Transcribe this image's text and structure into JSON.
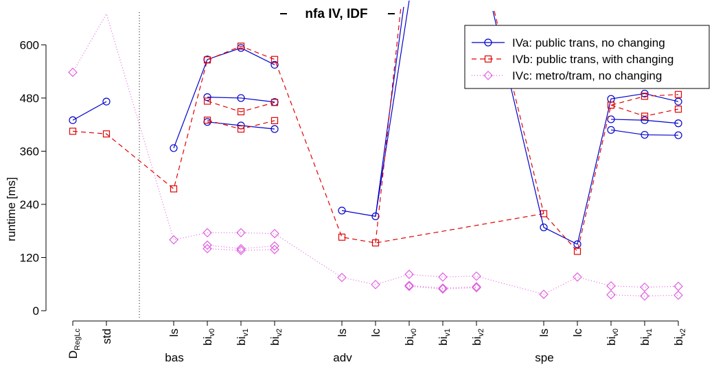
{
  "chart_data": {
    "type": "line",
    "title": "nfa IV, IDF",
    "ylabel": "runtime [ms]",
    "ylim": [
      0,
      670
    ],
    "yticks": [
      0,
      120,
      240,
      360,
      480,
      600
    ],
    "categories": [
      {
        "id": "dreg",
        "base": "D",
        "sub": "RegLc"
      },
      {
        "id": "std",
        "base": "std",
        "sub": ""
      },
      {
        "id": "bas_ls",
        "base": "ls",
        "sub": ""
      },
      {
        "id": "bas_bi0",
        "base": "bi",
        "sub": "v0"
      },
      {
        "id": "bas_bi1",
        "base": "bi",
        "sub": "v1"
      },
      {
        "id": "bas_bi2",
        "base": "bi",
        "sub": "v2"
      },
      {
        "id": "adv_ls",
        "base": "ls",
        "sub": ""
      },
      {
        "id": "adv_lc",
        "base": "lc",
        "sub": ""
      },
      {
        "id": "adv_bi0",
        "base": "bi",
        "sub": "v0"
      },
      {
        "id": "adv_bi1",
        "base": "bi",
        "sub": "v1"
      },
      {
        "id": "adv_bi2",
        "base": "bi",
        "sub": "v2"
      },
      {
        "id": "spe_ls",
        "base": "ls",
        "sub": ""
      },
      {
        "id": "spe_lc",
        "base": "lc",
        "sub": ""
      },
      {
        "id": "spe_bi0",
        "base": "bi",
        "sub": "v0"
      },
      {
        "id": "spe_bi1",
        "base": "bi",
        "sub": "v1"
      },
      {
        "id": "spe_bi2",
        "base": "bi",
        "sub": "v2"
      }
    ],
    "groups": [
      {
        "label": "bas",
        "center": "bas_ls"
      },
      {
        "label": "adv",
        "center": "adv_ls"
      },
      {
        "label": "spe",
        "center": "spe_ls"
      }
    ],
    "legend_position": "top-right",
    "series": [
      {
        "name": "IVa: public trans, no changing",
        "color": "#0000cc",
        "marker": "circle",
        "dash": "solid",
        "main": [
          430,
          472,
          null,
          367,
          567,
          593,
          555,
          null,
          226,
          213,
          700,
          null,
          null,
          null,
          188,
          150,
          478,
          490,
          472
        ],
        "main_x": [
          "dreg",
          "std",
          null,
          "bas_ls",
          "bas_bi0",
          "bas_bi1",
          "bas_bi2",
          null,
          "adv_ls",
          "adv_lc",
          "adv_bi0",
          null,
          null,
          null,
          "spe_ls",
          "spe_lc",
          "spe_bi0",
          "spe_bi1",
          "spe_bi2"
        ],
        "extra_lines": [
          {
            "x": [
              "bas_bi0",
              "bas_bi1",
              "bas_bi2"
            ],
            "values": [
              482,
              480,
              471
            ]
          },
          {
            "x": [
              "bas_bi0",
              "bas_bi1",
              "bas_bi2"
            ],
            "values": [
              426,
              418,
              410
            ]
          },
          {
            "x": [
              "spe_bi0",
              "spe_bi1",
              "spe_bi2"
            ],
            "values": [
              432,
              430,
              423
            ]
          },
          {
            "x": [
              "spe_bi0",
              "spe_bi1",
              "spe_bi2"
            ],
            "values": [
              408,
              397,
              396
            ]
          }
        ],
        "offscale_in": {
          "from": "adv_lc",
          "note": "values above axis between adv_lc and spe_ls"
        }
      },
      {
        "name": "IVb: public trans, with changing",
        "color": "#e00000",
        "marker": "square",
        "dash": "dashed",
        "main_x": [
          "dreg",
          "std",
          "bas_ls",
          "bas_bi0",
          "bas_bi1",
          "bas_bi2",
          "adv_ls",
          "adv_lc",
          "spe_ls",
          "spe_lc",
          "spe_bi0",
          "spe_bi1",
          "spe_bi2"
        ],
        "main": [
          405,
          399,
          275,
          566,
          597,
          567,
          166,
          153,
          219,
          134,
          464,
          484,
          488
        ],
        "extra_lines": [
          {
            "x": [
              "bas_bi0",
              "bas_bi1",
              "bas_bi2"
            ],
            "values": [
              473,
              449,
              470
            ]
          },
          {
            "x": [
              "bas_bi0",
              "bas_bi1",
              "bas_bi2"
            ],
            "values": [
              430,
              410,
              429
            ]
          },
          {
            "x": [
              "spe_bi0",
              "spe_bi1",
              "spe_bi2"
            ],
            "values": [
              464,
              439,
              455
            ]
          }
        ]
      },
      {
        "name": "IVc: metro/tram, no changing",
        "color": "#e060e0",
        "marker": "diamond",
        "dash": "dotted",
        "main_x": [
          "dreg",
          "std",
          "bas_ls",
          "bas_bi0",
          "bas_bi1",
          "bas_bi2",
          "adv_ls",
          "adv_lc",
          "adv_bi0",
          "adv_bi1",
          "adv_bi2",
          "spe_ls",
          "spe_lc",
          "spe_bi0",
          "spe_bi1",
          "spe_bi2"
        ],
        "main": [
          538,
          670,
          160,
          176,
          176,
          174,
          75,
          59,
          82,
          76,
          78,
          37,
          76,
          56,
          53,
          55
        ],
        "extra_lines": [
          {
            "x": [
              "bas_bi0",
              "bas_bi1",
              "bas_bi2"
            ],
            "values": [
              148,
              140,
              146
            ]
          },
          {
            "x": [
              "bas_bi0",
              "bas_bi1",
              "bas_bi2"
            ],
            "values": [
              140,
              136,
              138
            ]
          },
          {
            "x": [
              "adv_bi0",
              "adv_bi1",
              "adv_bi2"
            ],
            "values": [
              57,
              51,
              54
            ]
          },
          {
            "x": [
              "adv_bi0",
              "adv_bi1",
              "adv_bi2"
            ],
            "values": [
              55,
              49,
              52
            ]
          },
          {
            "x": [
              "spe_bi0",
              "spe_bi1",
              "spe_bi2"
            ],
            "values": [
              36,
              33,
              35
            ]
          }
        ]
      }
    ]
  }
}
